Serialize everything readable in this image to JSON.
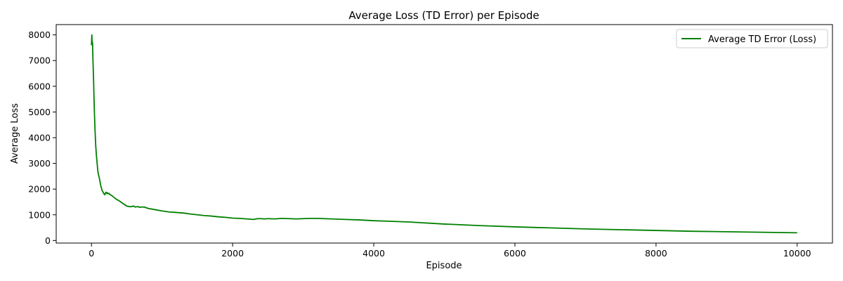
{
  "chart_data": {
    "type": "line",
    "title": "Average Loss (TD Error) per Episode",
    "xlabel": "Episode",
    "ylabel": "Average Loss",
    "xlim": [
      -500,
      10500
    ],
    "ylim": [
      -100,
      8400
    ],
    "xticks": [
      0,
      2000,
      4000,
      6000,
      8000,
      10000
    ],
    "yticks": [
      0,
      1000,
      2000,
      3000,
      4000,
      5000,
      6000,
      7000,
      8000
    ],
    "grid": false,
    "legend_position": "top-right",
    "series": [
      {
        "name": "Average TD Error (Loss)",
        "color": "#008000",
        "x": [
          0,
          5,
          10,
          15,
          20,
          30,
          40,
          50,
          60,
          70,
          80,
          90,
          100,
          110,
          120,
          130,
          140,
          150,
          160,
          170,
          180,
          190,
          200,
          210,
          220,
          230,
          240,
          250,
          260,
          280,
          300,
          350,
          400,
          450,
          500,
          550,
          600,
          620,
          640,
          660,
          680,
          700,
          750,
          800,
          900,
          1000,
          1100,
          1200,
          1300,
          1400,
          1500,
          1600,
          1700,
          1800,
          1900,
          2000,
          2100,
          2200,
          2300,
          2350,
          2400,
          2450,
          2500,
          2600,
          2650,
          2700,
          2800,
          2900,
          3000,
          3100,
          3200,
          3300,
          3400,
          3600,
          3800,
          4000,
          4200,
          4500,
          5000,
          5500,
          6000,
          6500,
          7000,
          7500,
          8000,
          8500,
          9000,
          9500,
          10000
        ],
        "values": [
          7600,
          8000,
          7600,
          7700,
          7100,
          6200,
          5100,
          4300,
          3700,
          3300,
          3000,
          2700,
          2550,
          2450,
          2300,
          2150,
          2050,
          1950,
          1900,
          1850,
          1800,
          1780,
          1860,
          1880,
          1820,
          1850,
          1820,
          1830,
          1790,
          1760,
          1720,
          1610,
          1530,
          1430,
          1340,
          1310,
          1340,
          1300,
          1310,
          1320,
          1290,
          1300,
          1300,
          1250,
          1200,
          1150,
          1110,
          1090,
          1070,
          1030,
          1000,
          970,
          950,
          920,
          900,
          870,
          860,
          840,
          820,
          850,
          850,
          840,
          850,
          840,
          850,
          860,
          850,
          840,
          850,
          860,
          860,
          850,
          840,
          820,
          800,
          770,
          750,
          720,
          640,
          580,
          530,
          490,
          450,
          420,
          390,
          360,
          340,
          320,
          300
        ]
      }
    ]
  }
}
